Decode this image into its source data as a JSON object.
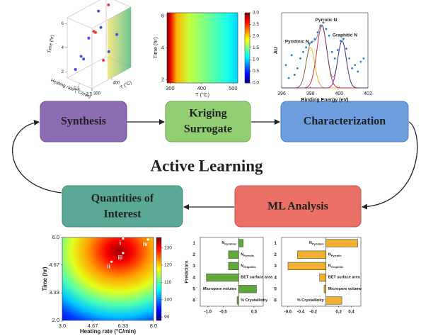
{
  "nodes": [
    {
      "lines": [
        "Synthesis"
      ]
    },
    {
      "lines": [
        "Kriging",
        "Surrogate"
      ]
    },
    {
      "lines": [
        "Characterization"
      ]
    },
    {
      "lines": [
        "ML Analysis"
      ]
    },
    {
      "lines": [
        "Quantities of",
        "Interest"
      ]
    }
  ],
  "center_label": "Active Learning",
  "chart_data": [
    {
      "type": "scatter3d",
      "xlabel": "Heating rate (°C/min)",
      "ylabel": "T (°C)",
      "zlabel": "Time (hr)",
      "xlim": [
        2.5,
        8.5
      ],
      "xticks": [
        2.5,
        5.5
      ],
      "ylim": [
        300,
        500
      ],
      "yticks": [
        300,
        400
      ],
      "zlim": [
        1.5,
        6.5
      ],
      "zticks": [
        2,
        4,
        6
      ],
      "x": [
        3,
        4,
        7,
        8,
        6,
        5,
        3.5,
        7.5,
        4.5,
        6.5,
        8,
        5.5
      ],
      "y": [
        320,
        350,
        480,
        450,
        420,
        310,
        380,
        350,
        470,
        300,
        400,
        450
      ],
      "z": [
        6,
        5.5,
        6.2,
        5.8,
        5,
        3.5,
        3,
        3,
        4.2,
        2.5,
        4,
        2.8
      ],
      "colors": [
        "#e04040",
        "#e04040",
        "#e04040",
        "#4050e0",
        "#4050e0",
        "#4050e0",
        "#e04040",
        "#4050e0",
        "#4050e0",
        "#4050e0",
        "#4050e0",
        "#4050e0"
      ]
    },
    {
      "type": "heatmap",
      "colormap": "jet",
      "xlabel": "T (°C)",
      "ylabel": "Time (hr)",
      "xlim": [
        290,
        515
      ],
      "xticks": [
        300,
        400,
        500
      ],
      "ylim": [
        1.8,
        6.2
      ],
      "yticks": [
        2,
        4,
        6
      ],
      "clim": [
        0,
        3
      ],
      "cticks": [
        {
          "value": 0,
          "label": "0.0"
        },
        0.5,
        {
          "value": 1,
          "label": "1.0"
        },
        1.5,
        {
          "value": 2,
          "label": "2.0"
        },
        2.5,
        {
          "value": 3,
          "label": "3.0"
        }
      ],
      "field": {
        "x": [
          290,
          300,
          320,
          360,
          420,
          480,
          515
        ],
        "values": [
          3,
          2.7,
          2.1,
          1.7,
          1.45,
          1.2,
          1.0
        ]
      }
    },
    {
      "type": "xps",
      "xlabel": "Binding Energy (eV)",
      "ylabel": "AU",
      "xlim": [
        396,
        402
      ],
      "xticks": [
        396,
        398,
        400,
        402
      ],
      "ylim": [
        0,
        1.15
      ],
      "dot_color": "#2080d0",
      "x": [
        396.3,
        396.5,
        396.7,
        396.9,
        397.1,
        397.3,
        397.5,
        397.7,
        397.9,
        398.1,
        398.3,
        398.5,
        398.7,
        398.9,
        399.1,
        399.3,
        399.5,
        399.7,
        399.9,
        400.1,
        400.3,
        400.5,
        400.7,
        400.9,
        401.1,
        401.3,
        401.5,
        401.7
      ],
      "values": [
        0.35,
        0.15,
        0.5,
        0.2,
        0.3,
        0.45,
        0.55,
        0.62,
        0.68,
        0.7,
        0.75,
        0.85,
        0.95,
        1.0,
        0.9,
        0.8,
        0.55,
        0.45,
        0.58,
        0.72,
        0.75,
        0.6,
        0.45,
        0.3,
        0.35,
        0.25,
        0.4,
        0.45
      ],
      "series": [
        {
          "name": "Pyridinic N",
          "color": "#f0b020",
          "center": 398.0,
          "height": 0.62,
          "width": 0.3
        },
        {
          "name": "Pyrrolic N",
          "color": "#d03030",
          "center": 398.8,
          "height": 0.95,
          "width": 0.35
        },
        {
          "name": "Graphitic N",
          "color": "#8030a0",
          "center": 400.2,
          "height": 0.72,
          "width": 0.3
        }
      ]
    },
    {
      "type": "heatmap-radial",
      "colormap": "jet",
      "xlabel": "Heating rate (°C/min)",
      "ylabel": "Time (hr)",
      "xlim": [
        3,
        8
      ],
      "xticks": [
        {
          "value": 3,
          "label": "3.0"
        },
        4.67,
        6.33,
        {
          "value": 8,
          "label": "8.0"
        }
      ],
      "ylim": [
        2,
        6
      ],
      "yticks": [
        {
          "value": 2,
          "label": "2.0"
        },
        3.33,
        4.67,
        {
          "value": 6,
          "label": "6.0"
        }
      ],
      "clim": [
        88,
        136
      ],
      "cticks": [
        90,
        100,
        110,
        120,
        130
      ],
      "points": {
        "labels": [
          "i",
          "ii",
          "iii",
          "iv"
        ],
        "x": [
          6.33,
          5.7,
          6.33,
          7.7
        ],
        "y": [
          5.95,
          4.83,
          5.25,
          5.9
        ]
      }
    },
    {
      "type": "barh",
      "ylabel": "Predictors",
      "categories": [
        "1",
        "2",
        "3",
        "4",
        "5",
        "6"
      ],
      "labels": [
        {
          "main": "N",
          "sub": "Pyridinic"
        },
        {
          "main": "N",
          "sub": "Pyrrolic"
        },
        {
          "main": "N",
          "sub": "Graphitic"
        },
        {
          "main": "BET surface area"
        },
        {
          "main": "Micropore volume"
        },
        {
          "main": "% Crystallinity"
        }
      ],
      "values": [
        0.15,
        -0.33,
        -0.33,
        -1.05,
        0.58,
        -0.05
      ],
      "color": "#5fa83a",
      "xlim": [
        -1.25,
        0.8
      ],
      "xticks": [
        {
          "value": -1,
          "label": "-1.0"
        },
        -0.5,
        0.5
      ]
    },
    {
      "type": "barh",
      "categories": [
        "1",
        "2",
        "3",
        "4",
        "5",
        "6"
      ],
      "labels": [
        {
          "main": "N",
          "sub": "Pyridinic"
        },
        {
          "main": "N",
          "sub": "Pyrrolic"
        },
        {
          "main": "N",
          "sub": "Graphitic"
        },
        {
          "main": "BET surface area"
        },
        {
          "main": "Micropore volume"
        },
        {
          "main": "% Crystallinity"
        }
      ],
      "values": [
        0.5,
        -0.45,
        -0.6,
        -0.1,
        -0.03,
        0.25
      ],
      "color": "#f0b030",
      "xlim": [
        -0.7,
        0.55
      ],
      "xticks": [
        -0.6,
        -0.4,
        -0.2,
        0.2,
        0.4
      ]
    }
  ]
}
